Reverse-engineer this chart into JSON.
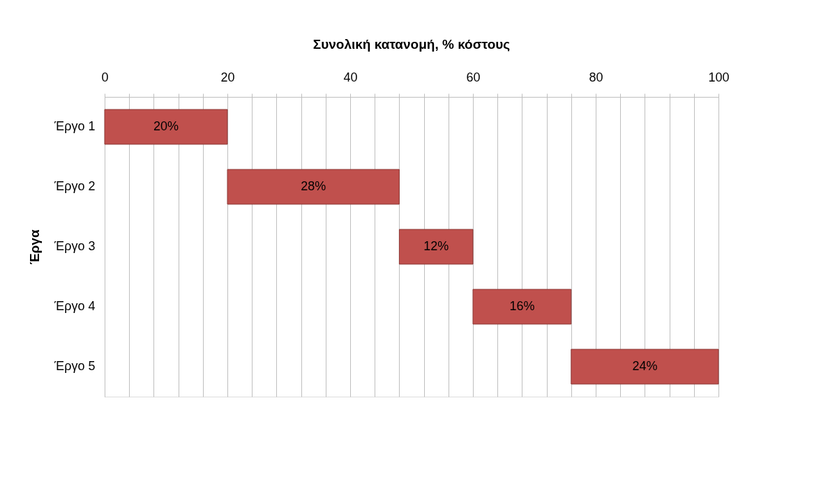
{
  "chart_data": {
    "type": "bar",
    "orientation": "horizontal",
    "title": "Συνολική κατανομή, % κόστους",
    "ylabel": "Έργα",
    "categories": [
      "Έργο 1",
      "Έργο 2",
      "Έργο 3",
      "Έργο 4",
      "Έργο 5"
    ],
    "values": [
      20,
      28,
      12,
      16,
      24
    ],
    "base": [
      0,
      20,
      48,
      60,
      76
    ],
    "color": "#c0504d",
    "value_labels": [
      "20%",
      "28%",
      "12%",
      "16%",
      "24%"
    ],
    "xlim": [
      0,
      100
    ],
    "xticks": [
      0,
      {
        "value": 4,
        "label": null
      },
      {
        "value": 8,
        "label": null
      },
      {
        "value": 12,
        "label": null
      },
      {
        "value": 16,
        "label": null
      },
      20,
      {
        "value": 24,
        "label": null
      },
      {
        "value": 28,
        "label": null
      },
      {
        "value": 32,
        "label": null
      },
      {
        "value": 36,
        "label": null
      },
      40,
      {
        "value": 44,
        "label": null
      },
      {
        "value": 48,
        "label": null
      },
      {
        "value": 52,
        "label": null
      },
      {
        "value": 56,
        "label": null
      },
      60,
      {
        "value": 64,
        "label": null
      },
      {
        "value": 68,
        "label": null
      },
      {
        "value": 72,
        "label": null
      },
      {
        "value": 76,
        "label": null
      },
      80,
      {
        "value": 84,
        "label": null
      },
      {
        "value": 88,
        "label": null
      },
      {
        "value": 92,
        "label": null
      },
      {
        "value": 96,
        "label": null
      },
      100
    ],
    "grid": "x"
  }
}
